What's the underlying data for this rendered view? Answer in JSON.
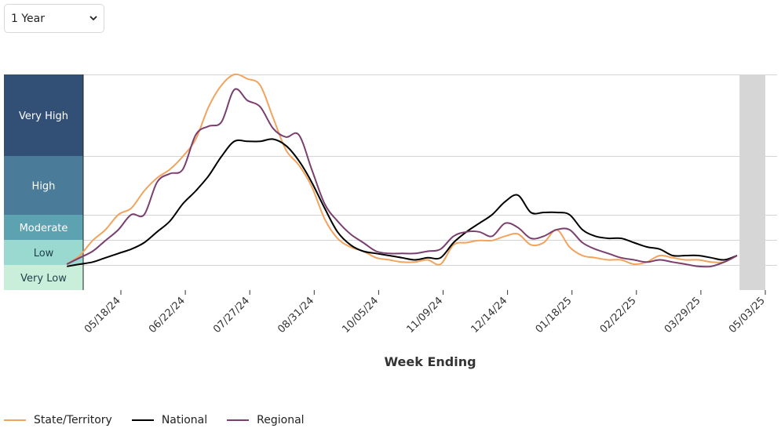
{
  "controls": {
    "range_selected": "1 Year"
  },
  "colors": {
    "state": "#f2a35e",
    "national": "#000000",
    "regional": "#7a3f6e",
    "projection": "#d6d6d6"
  },
  "chart_data": {
    "type": "line",
    "xlabel": "Week Ending",
    "ylabel": "",
    "x_ticks": [
      "05/18/24",
      "06/22/24",
      "07/27/24",
      "08/31/24",
      "10/05/24",
      "11/09/24",
      "12/14/24",
      "01/18/25",
      "02/22/25",
      "03/29/25",
      "05/03/25"
    ],
    "x_range": [
      "2024-05-04",
      "2025-05-03"
    ],
    "projection_start": "2025-04-19",
    "levels": [
      {
        "name": "Very High",
        "color": "#324f76"
      },
      {
        "name": "High",
        "color": "#4a7b99"
      },
      {
        "name": "Moderate",
        "color": "#5da2b1"
      },
      {
        "name": "Low",
        "color": "#99d9cf"
      },
      {
        "name": "Very Low",
        "color": "#c9efdb"
      }
    ],
    "level_value_unit": "relative position on the activity-level scale, 0 = bottom of Very Low, 1 = top of Very High",
    "series": [
      {
        "name": "State/Territory",
        "color": "#f2a35e",
        "x": [
          "2024-05-04",
          "2024-05-11",
          "2024-05-18",
          "2024-05-25",
          "2024-06-01",
          "2024-06-08",
          "2024-06-15",
          "2024-06-22",
          "2024-06-29",
          "2024-07-06",
          "2024-07-13",
          "2024-07-20",
          "2024-07-27",
          "2024-08-03",
          "2024-08-10",
          "2024-08-17",
          "2024-08-24",
          "2024-08-31",
          "2024-09-07",
          "2024-09-14",
          "2024-09-21",
          "2024-09-28",
          "2024-10-05",
          "2024-10-12",
          "2024-10-19",
          "2024-10-26",
          "2024-11-02",
          "2024-11-09",
          "2024-11-16",
          "2024-11-23",
          "2024-11-30",
          "2024-12-07",
          "2024-12-14",
          "2024-12-21",
          "2024-12-28",
          "2025-01-04",
          "2025-01-11",
          "2025-01-18",
          "2025-01-25",
          "2025-02-01",
          "2025-02-08",
          "2025-02-15",
          "2025-02-22",
          "2025-03-01",
          "2025-03-08",
          "2025-03-15",
          "2025-03-22",
          "2025-03-29",
          "2025-04-05",
          "2025-04-12",
          "2025-04-19",
          "2025-04-26",
          "2025-05-03"
        ],
        "values": [
          0.12,
          0.16,
          0.23,
          0.28,
          0.35,
          0.38,
          0.46,
          0.52,
          0.56,
          0.62,
          0.7,
          0.85,
          0.95,
          1.0,
          0.98,
          0.95,
          0.8,
          0.65,
          0.58,
          0.48,
          0.33,
          0.24,
          0.2,
          0.18,
          0.15,
          0.14,
          0.13,
          0.13,
          0.14,
          0.12,
          0.21,
          0.22,
          0.23,
          0.23,
          0.25,
          0.26,
          0.21,
          0.22,
          0.28,
          0.2,
          0.16,
          0.15,
          0.14,
          0.14,
          0.12,
          0.13,
          0.16,
          0.15,
          0.14,
          0.14,
          0.13,
          0.13,
          0.16
        ]
      },
      {
        "name": "National",
        "color": "#000000",
        "x": [
          "2024-05-04",
          "2024-05-11",
          "2024-05-18",
          "2024-05-25",
          "2024-06-01",
          "2024-06-08",
          "2024-06-15",
          "2024-06-22",
          "2024-06-29",
          "2024-07-06",
          "2024-07-13",
          "2024-07-20",
          "2024-07-27",
          "2024-08-03",
          "2024-08-10",
          "2024-08-17",
          "2024-08-24",
          "2024-08-31",
          "2024-09-07",
          "2024-09-14",
          "2024-09-21",
          "2024-09-28",
          "2024-10-05",
          "2024-10-12",
          "2024-10-19",
          "2024-10-26",
          "2024-11-02",
          "2024-11-09",
          "2024-11-16",
          "2024-11-23",
          "2024-11-30",
          "2024-12-07",
          "2024-12-14",
          "2024-12-21",
          "2024-12-28",
          "2025-01-04",
          "2025-01-11",
          "2025-01-18",
          "2025-01-25",
          "2025-02-01",
          "2025-02-08",
          "2025-02-15",
          "2025-02-22",
          "2025-03-01",
          "2025-03-08",
          "2025-03-15",
          "2025-03-22",
          "2025-03-29",
          "2025-04-05",
          "2025-04-12",
          "2025-04-19",
          "2025-04-26",
          "2025-05-03"
        ],
        "values": [
          0.11,
          0.12,
          0.13,
          0.15,
          0.17,
          0.19,
          0.22,
          0.27,
          0.32,
          0.4,
          0.46,
          0.53,
          0.62,
          0.69,
          0.69,
          0.69,
          0.7,
          0.67,
          0.6,
          0.5,
          0.38,
          0.27,
          0.21,
          0.18,
          0.17,
          0.16,
          0.15,
          0.14,
          0.15,
          0.15,
          0.22,
          0.27,
          0.31,
          0.35,
          0.41,
          0.44,
          0.36,
          0.36,
          0.36,
          0.35,
          0.28,
          0.25,
          0.24,
          0.24,
          0.22,
          0.2,
          0.19,
          0.16,
          0.16,
          0.16,
          0.15,
          0.14,
          0.16
        ]
      },
      {
        "name": "Regional",
        "color": "#7a3f6e",
        "x": [
          "2024-05-04",
          "2024-05-11",
          "2024-05-18",
          "2024-05-25",
          "2024-06-01",
          "2024-06-08",
          "2024-06-15",
          "2024-06-22",
          "2024-06-29",
          "2024-07-06",
          "2024-07-13",
          "2024-07-20",
          "2024-07-27",
          "2024-08-03",
          "2024-08-10",
          "2024-08-17",
          "2024-08-24",
          "2024-08-31",
          "2024-09-07",
          "2024-09-14",
          "2024-09-21",
          "2024-09-28",
          "2024-10-05",
          "2024-10-12",
          "2024-10-19",
          "2024-10-26",
          "2024-11-02",
          "2024-11-09",
          "2024-11-16",
          "2024-11-23",
          "2024-11-30",
          "2024-12-07",
          "2024-12-14",
          "2024-12-21",
          "2024-12-28",
          "2025-01-04",
          "2025-01-11",
          "2025-01-18",
          "2025-01-25",
          "2025-02-01",
          "2025-02-08",
          "2025-02-15",
          "2025-02-22",
          "2025-03-01",
          "2025-03-08",
          "2025-03-15",
          "2025-03-22",
          "2025-03-29",
          "2025-04-05",
          "2025-04-12",
          "2025-04-19",
          "2025-04-26",
          "2025-05-03"
        ],
        "values": [
          0.12,
          0.15,
          0.18,
          0.23,
          0.28,
          0.35,
          0.35,
          0.5,
          0.54,
          0.56,
          0.72,
          0.76,
          0.78,
          0.93,
          0.88,
          0.85,
          0.75,
          0.71,
          0.72,
          0.56,
          0.4,
          0.32,
          0.26,
          0.22,
          0.18,
          0.17,
          0.17,
          0.17,
          0.18,
          0.19,
          0.25,
          0.27,
          0.27,
          0.25,
          0.31,
          0.29,
          0.24,
          0.25,
          0.28,
          0.28,
          0.22,
          0.19,
          0.17,
          0.15,
          0.14,
          0.13,
          0.14,
          0.13,
          0.12,
          0.11,
          0.11,
          0.13,
          0.16
        ]
      }
    ]
  }
}
